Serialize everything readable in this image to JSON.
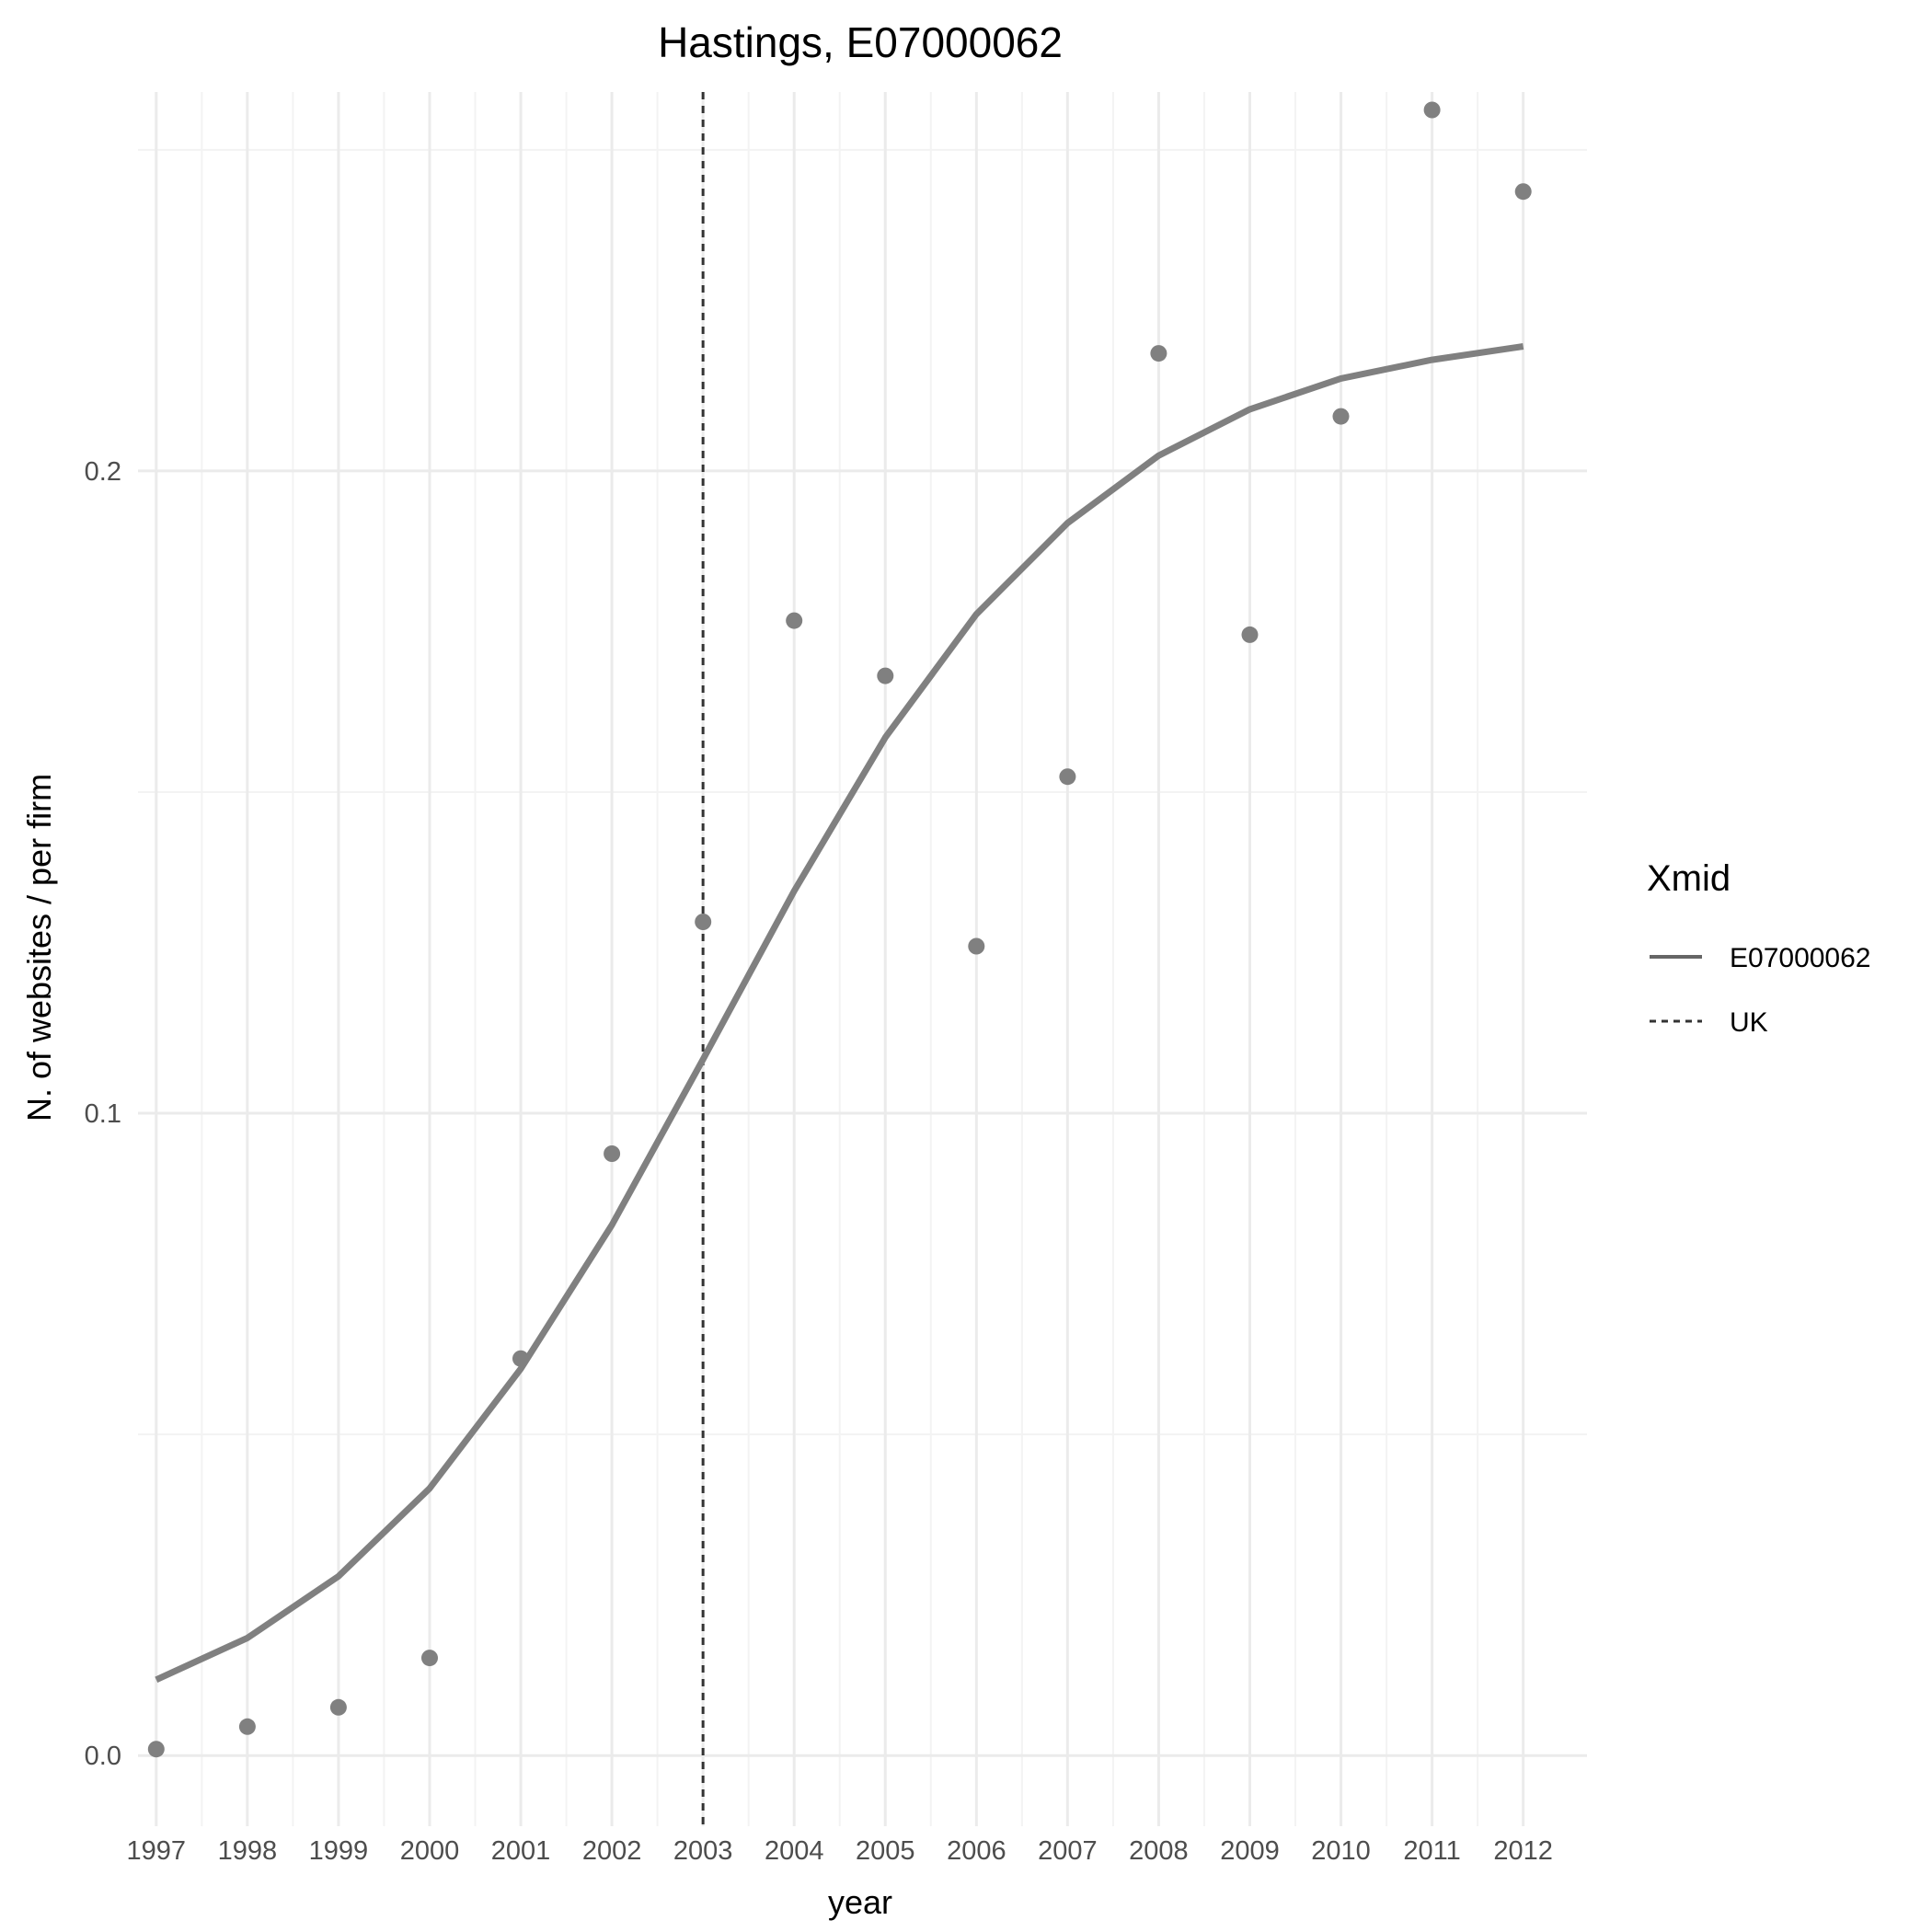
{
  "chart_data": {
    "type": "line",
    "title": "Hastings, E07000062",
    "xlabel": "year",
    "ylabel": "N. of websites / per firm",
    "x": [
      1997,
      1998,
      1999,
      2000,
      2001,
      2002,
      2003,
      2004,
      2005,
      2006,
      2007,
      2008,
      2009,
      2010,
      2011,
      2012
    ],
    "xlim": [
      1996.8,
      2012.7
    ],
    "ylim": [
      -0.011,
      0.259
    ],
    "y_ticks": [
      0.0,
      0.1,
      0.2
    ],
    "y_tick_labels": [
      "0.0",
      "0.1",
      "0.2"
    ],
    "grid": true,
    "legend": {
      "title": "Xmid",
      "placement": "right",
      "entries": [
        {
          "label": "E07000062",
          "style": "solid"
        },
        {
          "label": "UK",
          "style": "dashed"
        }
      ]
    },
    "series": [
      {
        "kind": "points",
        "color": "#808080",
        "values": [
          0.001,
          0.0045,
          0.0075,
          0.0152,
          0.0618,
          0.0937,
          0.1298,
          0.1767,
          0.1681,
          0.126,
          0.1524,
          0.2183,
          0.1745,
          0.2085,
          0.2562,
          0.2435
        ]
      },
      {
        "name": "E07000062",
        "kind": "line",
        "style": "solid",
        "color": "#808080",
        "values": [
          0.0118,
          0.0183,
          0.0279,
          0.0416,
          0.0602,
          0.0826,
          0.1084,
          0.1346,
          0.1585,
          0.1777,
          0.1919,
          0.2024,
          0.2096,
          0.2144,
          0.2173,
          0.2194
        ]
      },
      {
        "name": "UK",
        "kind": "vline",
        "style": "dashed",
        "color": "#333333",
        "x": 2003
      }
    ]
  }
}
